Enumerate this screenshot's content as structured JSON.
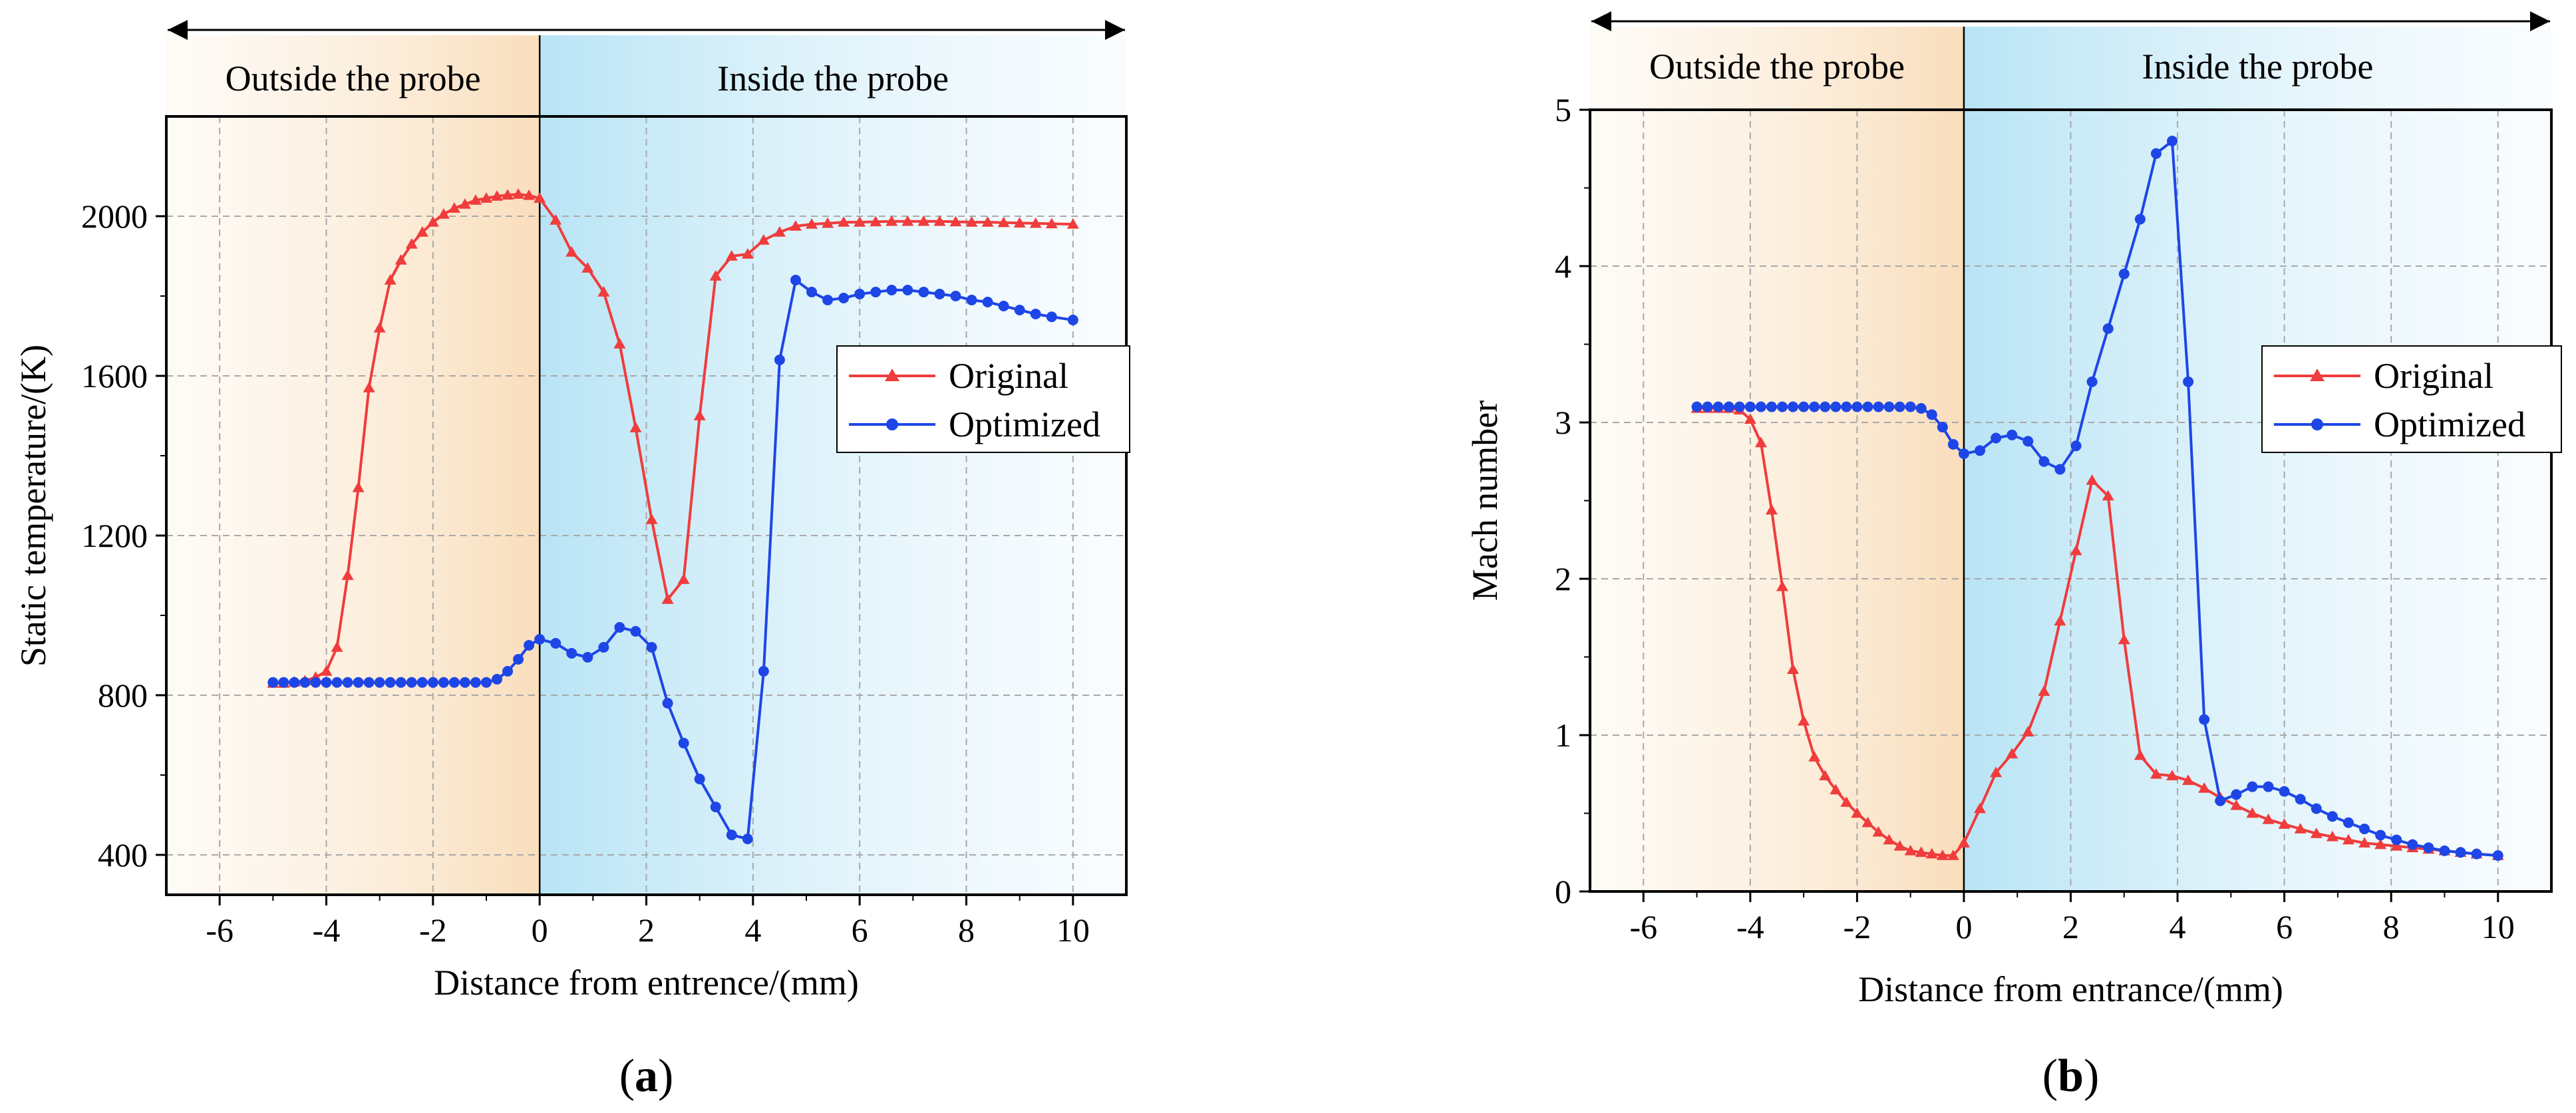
{
  "colors": {
    "original": "#f03c3c",
    "optimized": "#1e46e6",
    "outside_region": "#f9dcb8",
    "inside_region": "#b8e4f5"
  },
  "panels": [
    {
      "panel_label": "a",
      "region_labels": {
        "outside": "Outside the probe",
        "inside": "Inside the probe"
      },
      "legend": {
        "original": "Original",
        "optimized": "Optimized"
      }
    },
    {
      "panel_label": "b",
      "region_labels": {
        "outside": "Outside the probe",
        "inside": "Inside the probe"
      },
      "legend": {
        "original": "Original",
        "optimized": "Optimized"
      }
    }
  ],
  "chart_data": [
    {
      "type": "line",
      "title": "",
      "xlabel": "Distance from entrence/(mm)",
      "ylabel": "Static temperature/(K)",
      "xlim": [
        -7,
        11
      ],
      "ylim": [
        300,
        2250
      ],
      "xticks": [
        -6,
        -4,
        -2,
        0,
        2,
        4,
        6,
        8,
        10
      ],
      "yticks": [
        400,
        800,
        1200,
        1600,
        2000
      ],
      "grid": true,
      "legend_position": "center-right",
      "series": [
        {
          "name": "Original",
          "marker": "triangle",
          "x": [
            -5,
            -4.8,
            -4.6,
            -4.4,
            -4.2,
            -4,
            -3.8,
            -3.6,
            -3.4,
            -3.2,
            -3,
            -2.8,
            -2.6,
            -2.4,
            -2.2,
            -2,
            -1.8,
            -1.6,
            -1.4,
            -1.2,
            -1,
            -0.8,
            -0.6,
            -0.4,
            -0.2,
            0,
            0.3,
            0.6,
            0.9,
            1.2,
            1.5,
            1.8,
            2.1,
            2.4,
            2.7,
            3.0,
            3.3,
            3.6,
            3.9,
            4.2,
            4.5,
            4.8,
            5.1,
            5.4,
            5.7,
            6.0,
            6.3,
            6.6,
            6.9,
            7.2,
            7.5,
            7.8,
            8.1,
            8.4,
            8.7,
            9.0,
            9.3,
            9.6,
            10
          ],
          "y": [
            830,
            830,
            833,
            836,
            845,
            860,
            920,
            1100,
            1320,
            1570,
            1720,
            1840,
            1890,
            1930,
            1960,
            1985,
            2005,
            2020,
            2030,
            2040,
            2045,
            2050,
            2053,
            2055,
            2052,
            2045,
            1990,
            1910,
            1870,
            1810,
            1680,
            1470,
            1240,
            1040,
            1090,
            1500,
            1850,
            1900,
            1905,
            1940,
            1960,
            1975,
            1980,
            1982,
            1985,
            1985,
            1986,
            1987,
            1987,
            1987,
            1987,
            1986,
            1985,
            1985,
            1984,
            1983,
            1982,
            1981,
            1980
          ]
        },
        {
          "name": "Optimized",
          "marker": "circle",
          "x": [
            -5,
            -4.8,
            -4.6,
            -4.4,
            -4.2,
            -4,
            -3.8,
            -3.6,
            -3.4,
            -3.2,
            -3,
            -2.8,
            -2.6,
            -2.4,
            -2.2,
            -2,
            -1.8,
            -1.6,
            -1.4,
            -1.2,
            -1,
            -0.8,
            -0.6,
            -0.4,
            -0.2,
            0,
            0.3,
            0.6,
            0.9,
            1.2,
            1.5,
            1.8,
            2.1,
            2.4,
            2.7,
            3.0,
            3.3,
            3.6,
            3.9,
            4.2,
            4.5,
            4.8,
            5.1,
            5.4,
            5.7,
            6.0,
            6.3,
            6.6,
            6.9,
            7.2,
            7.5,
            7.8,
            8.1,
            8.4,
            8.7,
            9.0,
            9.3,
            9.6,
            10
          ],
          "y": [
            832,
            832,
            832,
            832,
            832,
            832,
            832,
            832,
            832,
            832,
            832,
            832,
            832,
            832,
            832,
            832,
            832,
            832,
            832,
            832,
            832,
            840,
            860,
            890,
            925,
            940,
            930,
            905,
            895,
            920,
            970,
            960,
            920,
            780,
            680,
            590,
            520,
            450,
            440,
            860,
            1640,
            1840,
            1810,
            1790,
            1795,
            1805,
            1810,
            1815,
            1815,
            1810,
            1805,
            1800,
            1790,
            1785,
            1775,
            1765,
            1755,
            1748,
            1740
          ]
        }
      ]
    },
    {
      "type": "line",
      "title": "",
      "xlabel": "Distance from entrance/(mm)",
      "ylabel": "Mach number",
      "xlim": [
        -7,
        11
      ],
      "ylim": [
        0,
        5
      ],
      "xticks": [
        -6,
        -4,
        -2,
        0,
        2,
        4,
        6,
        8,
        10
      ],
      "yticks": [
        0,
        1,
        2,
        3,
        4,
        5
      ],
      "grid": true,
      "legend_position": "center-right",
      "series": [
        {
          "name": "Original",
          "marker": "triangle",
          "x": [
            -5,
            -4.8,
            -4.6,
            -4.4,
            -4.2,
            -4,
            -3.8,
            -3.6,
            -3.4,
            -3.2,
            -3,
            -2.8,
            -2.6,
            -2.4,
            -2.2,
            -2,
            -1.8,
            -1.6,
            -1.4,
            -1.2,
            -1,
            -0.8,
            -0.6,
            -0.4,
            -0.2,
            0,
            0.3,
            0.6,
            0.9,
            1.2,
            1.5,
            1.8,
            2.1,
            2.4,
            2.7,
            3.0,
            3.3,
            3.6,
            3.9,
            4.2,
            4.5,
            4.8,
            5.1,
            5.4,
            5.7,
            6.0,
            6.3,
            6.6,
            6.9,
            7.2,
            7.5,
            7.8,
            8.1,
            8.4,
            8.7,
            9.0,
            9.3,
            9.6,
            10
          ],
          "y": [
            3.09,
            3.09,
            3.09,
            3.09,
            3.08,
            3.02,
            2.87,
            2.44,
            1.95,
            1.42,
            1.09,
            0.86,
            0.74,
            0.65,
            0.57,
            0.5,
            0.44,
            0.38,
            0.33,
            0.29,
            0.26,
            0.25,
            0.24,
            0.23,
            0.23,
            0.31,
            0.53,
            0.76,
            0.88,
            1.02,
            1.28,
            1.73,
            2.18,
            2.63,
            2.53,
            1.61,
            0.87,
            0.75,
            0.74,
            0.71,
            0.66,
            0.6,
            0.55,
            0.5,
            0.46,
            0.43,
            0.4,
            0.37,
            0.35,
            0.33,
            0.31,
            0.3,
            0.29,
            0.28,
            0.27,
            0.26,
            0.25,
            0.24,
            0.23
          ]
        },
        {
          "name": "Optimized",
          "marker": "circle",
          "x": [
            -5,
            -4.8,
            -4.6,
            -4.4,
            -4.2,
            -4,
            -3.8,
            -3.6,
            -3.4,
            -3.2,
            -3,
            -2.8,
            -2.6,
            -2.4,
            -2.2,
            -2,
            -1.8,
            -1.6,
            -1.4,
            -1.2,
            -1,
            -0.8,
            -0.6,
            -0.4,
            -0.2,
            0,
            0.3,
            0.6,
            0.9,
            1.2,
            1.5,
            1.8,
            2.1,
            2.4,
            2.7,
            3.0,
            3.3,
            3.6,
            3.9,
            4.2,
            4.5,
            4.8,
            5.1,
            5.4,
            5.7,
            6.0,
            6.3,
            6.6,
            6.9,
            7.2,
            7.5,
            7.8,
            8.1,
            8.4,
            8.7,
            9.0,
            9.3,
            9.6,
            10
          ],
          "y": [
            3.1,
            3.1,
            3.1,
            3.1,
            3.1,
            3.1,
            3.1,
            3.1,
            3.1,
            3.1,
            3.1,
            3.1,
            3.1,
            3.1,
            3.1,
            3.1,
            3.1,
            3.1,
            3.1,
            3.1,
            3.1,
            3.09,
            3.05,
            2.97,
            2.86,
            2.8,
            2.82,
            2.9,
            2.92,
            2.88,
            2.75,
            2.7,
            2.85,
            3.26,
            3.6,
            3.95,
            4.3,
            4.72,
            4.8,
            3.26,
            1.1,
            0.58,
            0.62,
            0.67,
            0.67,
            0.64,
            0.59,
            0.53,
            0.48,
            0.44,
            0.4,
            0.36,
            0.33,
            0.3,
            0.28,
            0.26,
            0.25,
            0.24,
            0.23
          ]
        }
      ]
    }
  ]
}
